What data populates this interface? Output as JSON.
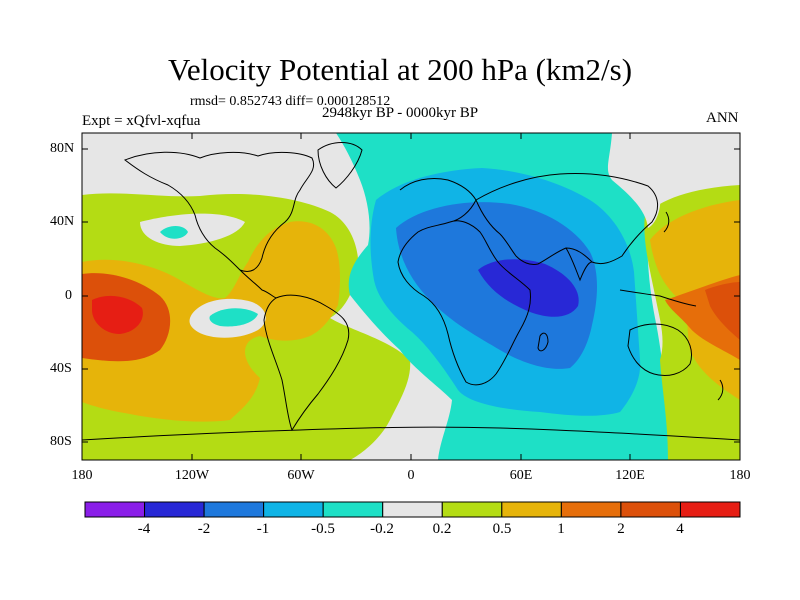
{
  "title": "Velocity Potential at 200 hPa (km2/s)",
  "stats_line": "rmsd= 0.852743  diff= 0.000128512",
  "experiment": "Expt = xQfvl-xqfua",
  "period": "2948kyr BP - 0000kyr BP",
  "season": "ANN",
  "lat_labels": [
    "80N",
    "40N",
    "0",
    "40S",
    "80S"
  ],
  "lon_labels": [
    "180",
    "120W",
    "60W",
    "0",
    "60E",
    "120E",
    "180"
  ],
  "colorbar": {
    "labels": [
      "-4",
      "-2",
      "-1",
      "-0.5",
      "-0.2",
      "0.2",
      "0.5",
      "1",
      "2",
      "4"
    ],
    "colors": [
      "#8a1ee8",
      "#2828d6",
      "#1e78dc",
      "#10b4e6",
      "#1ee0c6",
      "#e6e6e6",
      "#b4dc14",
      "#e6b40a",
      "#e66e0a",
      "#dc500a",
      "#e61e14"
    ]
  },
  "colors": {
    "neutral": "#e6e6e6",
    "coastline": "#000000"
  }
}
